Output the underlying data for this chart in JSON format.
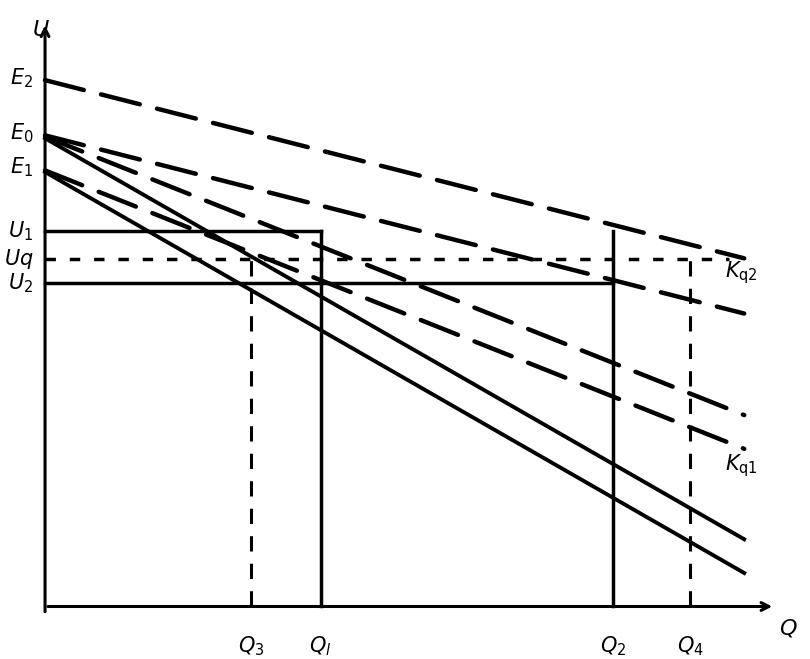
{
  "figsize": [
    8.1,
    6.59
  ],
  "dpi": 100,
  "bg_color": "#ffffff",
  "line_color": "#000000",
  "x_min": 0,
  "x_max": 10,
  "y_min": 0,
  "y_max": 10,
  "E2": 8.8,
  "E0": 7.9,
  "E1": 7.35,
  "U1": 6.3,
  "Uq": 5.85,
  "U2": 5.45,
  "Q3": 2.8,
  "Ql": 3.7,
  "Q2": 7.5,
  "Q4": 8.5,
  "label_fontsize": 15,
  "axis_label_fontsize": 16,
  "slope_Kq2": -0.32,
  "slope_Kq1": -0.5,
  "slope_solid1": -0.72,
  "slope_solid2": -0.72,
  "dash_lw": 3.2,
  "solid_droop_lw": 2.8,
  "horiz_lw": 2.5,
  "vert_solid_lw": 2.5,
  "vert_dash_lw": 2.2
}
